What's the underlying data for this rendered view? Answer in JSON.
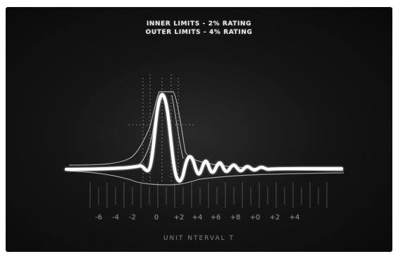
{
  "scope": {
    "legend_inner": "INNER LIMITS - 2% RATING",
    "legend_outer": "OUTER LIMITS - 4% RATING",
    "tick_labels": [
      "-6",
      "-4",
      "-2",
      "0",
      "+2",
      "+4",
      "+6",
      "+8",
      "+0",
      "+2",
      "+4"
    ],
    "axis_caption": "UNIT   NTERVAL  T"
  }
}
